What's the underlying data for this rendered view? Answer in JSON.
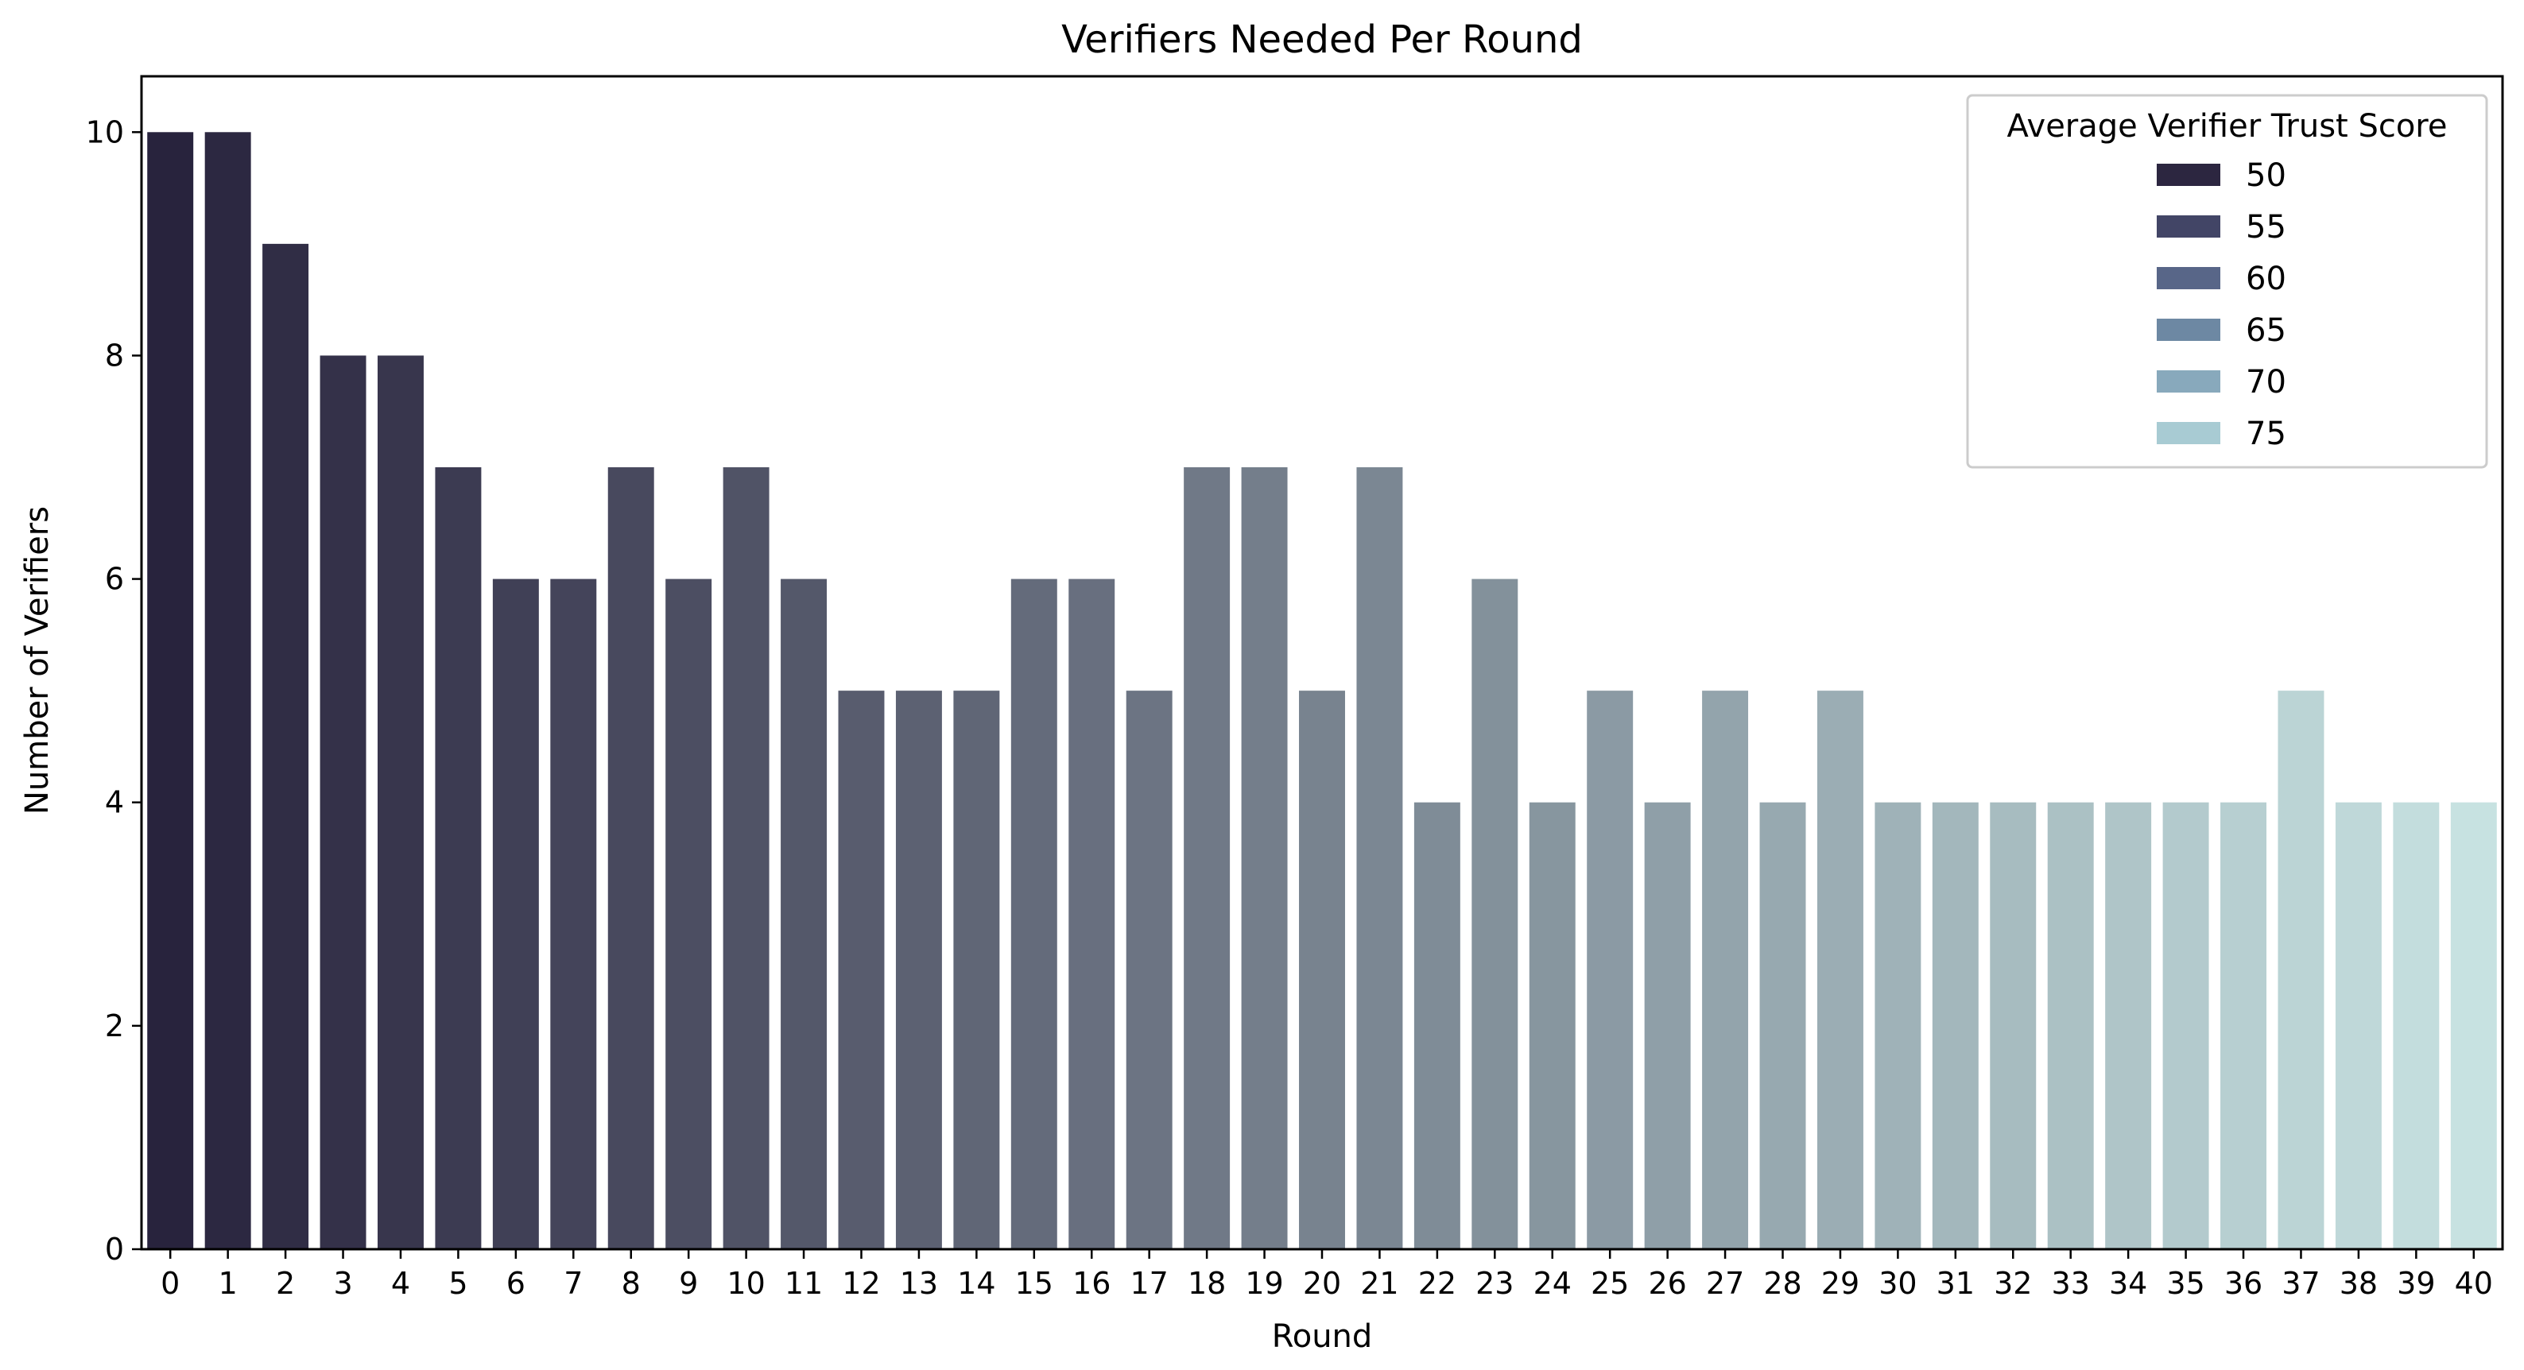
{
  "chart_data": {
    "type": "bar",
    "title": "Verifiers Needed Per Round",
    "xlabel": "Round",
    "ylabel": "Number of Verifiers",
    "ylim": [
      0,
      10.5
    ],
    "yticks": [
      0,
      2,
      4,
      6,
      8,
      10
    ],
    "grid": false,
    "categories": [
      "0",
      "1",
      "2",
      "3",
      "4",
      "5",
      "6",
      "7",
      "8",
      "9",
      "10",
      "11",
      "12",
      "13",
      "14",
      "15",
      "16",
      "17",
      "18",
      "19",
      "20",
      "21",
      "22",
      "23",
      "24",
      "25",
      "26",
      "27",
      "28",
      "29",
      "30",
      "31",
      "32",
      "33",
      "34",
      "35",
      "36",
      "37",
      "38",
      "39",
      "40"
    ],
    "values": [
      10,
      10,
      9,
      8,
      8,
      7,
      6,
      6,
      7,
      6,
      7,
      6,
      5,
      5,
      5,
      6,
      6,
      5,
      7,
      7,
      5,
      7,
      4,
      6,
      4,
      5,
      4,
      5,
      4,
      5,
      4,
      4,
      4,
      4,
      4,
      4,
      4,
      5,
      4,
      4,
      4
    ],
    "legend": {
      "title": "Average Verifier Trust Score",
      "placement": "top-right",
      "entries": [
        {
          "label": "50",
          "color": "#2c2640"
        },
        {
          "label": "55",
          "color": "#424566"
        },
        {
          "label": "60",
          "color": "#586688"
        },
        {
          "label": "65",
          "color": "#6d88a3"
        },
        {
          "label": "70",
          "color": "#88a9bc"
        },
        {
          "label": "75",
          "color": "#a8cbd3"
        }
      ]
    },
    "bar_color_start": "#28233d",
    "bar_color_end": "#c7e2e1"
  }
}
